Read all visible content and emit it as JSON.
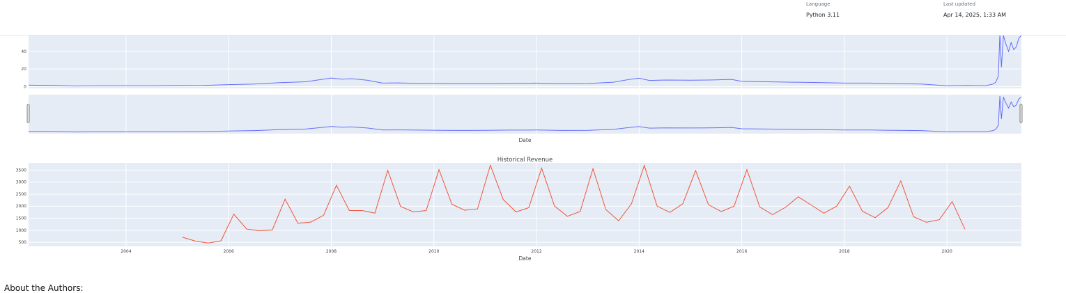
{
  "header": {
    "language_label": "Language",
    "language_value": "Python 3.11",
    "updated_label": "Last updated",
    "updated_value": "Apr 14, 2025, 1:33 AM"
  },
  "chart_data": [
    {
      "type": "line",
      "title": "",
      "xlabel": "Date",
      "ylabel": "",
      "y_ticks": [
        0,
        20,
        40
      ],
      "ylim": [
        -2,
        58
      ],
      "xlim": [
        2002.1,
        2021.45
      ],
      "grid": true,
      "range_slider": true,
      "series": [
        {
          "color": "#636efa",
          "x": [
            2002.1,
            2002.6,
            2003.0,
            2003.5,
            2004.0,
            2004.5,
            2005.0,
            2005.5,
            2006.0,
            2006.5,
            2007.0,
            2007.5,
            2007.8,
            2008.0,
            2008.2,
            2008.4,
            2008.7,
            2009.0,
            2009.3,
            2009.7,
            2010.0,
            2010.5,
            2011.0,
            2011.5,
            2012.0,
            2012.5,
            2013.0,
            2013.5,
            2013.8,
            2014.0,
            2014.2,
            2014.5,
            2015.0,
            2015.5,
            2015.8,
            2016.0,
            2016.5,
            2017.0,
            2017.5,
            2018.0,
            2018.5,
            2019.0,
            2019.5,
            2020.0,
            2020.4,
            2020.75,
            2020.9,
            2020.95,
            2021.0,
            2021.03,
            2021.06,
            2021.1,
            2021.15,
            2021.2,
            2021.25,
            2021.3,
            2021.35,
            2021.4,
            2021.45
          ],
          "y": [
            1.6,
            1.4,
            0.7,
            0.9,
            1.0,
            1.0,
            1.2,
            1.3,
            2.3,
            3.0,
            4.5,
            5.5,
            8.0,
            9.8,
            8.5,
            9.0,
            7.2,
            4.0,
            4.2,
            3.8,
            3.6,
            3.3,
            3.4,
            3.8,
            4.0,
            3.2,
            3.5,
            5.0,
            8.0,
            9.5,
            7.0,
            7.5,
            7.2,
            7.6,
            8.2,
            6.0,
            5.5,
            5.0,
            4.6,
            4.0,
            4.0,
            3.4,
            3.0,
            0.9,
            1.2,
            1.0,
            3.0,
            5.0,
            12.0,
            60.0,
            22.0,
            58.0,
            48.0,
            40.0,
            50.0,
            42.0,
            45.0,
            55.0,
            58.0
          ]
        }
      ]
    },
    {
      "type": "line",
      "title": "Historical Revenue",
      "xlabel": "Date",
      "ylabel": "",
      "y_ticks": [
        500,
        1000,
        1500,
        2000,
        2500,
        3000,
        3500
      ],
      "ylim": [
        330,
        3800
      ],
      "x_ticks": [
        2004,
        2006,
        2008,
        2010,
        2012,
        2014,
        2016,
        2018,
        2020
      ],
      "xlim": [
        2002.1,
        2021.45
      ],
      "grid": true,
      "series": [
        {
          "color": "#ef553b",
          "x": [
            2005.1,
            2005.35,
            2005.6,
            2005.85,
            2006.1,
            2006.35,
            2006.6,
            2006.85,
            2007.1,
            2007.35,
            2007.6,
            2007.85,
            2008.1,
            2008.35,
            2008.6,
            2008.85,
            2009.1,
            2009.35,
            2009.6,
            2009.85,
            2010.1,
            2010.35,
            2010.6,
            2010.85,
            2011.1,
            2011.35,
            2011.6,
            2011.85,
            2012.1,
            2012.35,
            2012.6,
            2012.85,
            2013.1,
            2013.35,
            2013.6,
            2013.85,
            2014.1,
            2014.35,
            2014.6,
            2014.85,
            2015.1,
            2015.35,
            2015.6,
            2015.85,
            2016.1,
            2016.35,
            2016.6,
            2016.85,
            2017.1,
            2017.35,
            2017.6,
            2017.85,
            2018.1,
            2018.35,
            2018.6,
            2018.85,
            2019.1,
            2019.35,
            2019.6,
            2019.85,
            2020.1,
            2020.35
          ],
          "y": [
            710,
            550,
            470,
            560,
            1670,
            1050,
            980,
            1010,
            2290,
            1290,
            1340,
            1620,
            2870,
            1820,
            1820,
            1710,
            3490,
            1990,
            1760,
            1820,
            3520,
            2080,
            1830,
            1890,
            3700,
            2280,
            1760,
            1940,
            3580,
            2010,
            1580,
            1780,
            3560,
            1860,
            1390,
            2100,
            3690,
            2000,
            1740,
            2100,
            3480,
            2060,
            1780,
            2000,
            3520,
            1970,
            1650,
            1950,
            2390,
            2050,
            1710,
            2000,
            2830,
            1790,
            1520,
            1940,
            3050,
            1560,
            1330,
            1440,
            2190,
            1040
          ]
        }
      ]
    }
  ],
  "footer": {
    "about_heading": "About the Authors:"
  }
}
